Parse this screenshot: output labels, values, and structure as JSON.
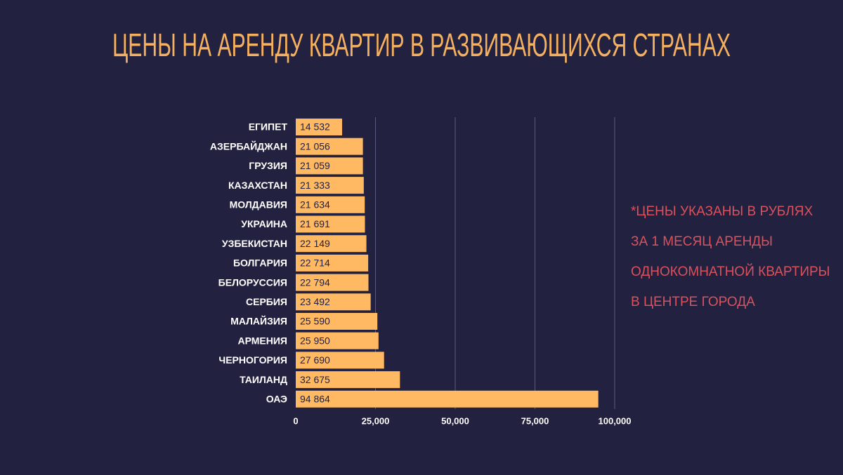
{
  "chart_data": {
    "type": "bar",
    "orientation": "horizontal",
    "title": "ЦЕНЫ НА АРЕНДУ КВАРТИР В РАЗВИВАЮЩИХСЯ СТРАНАХ",
    "categories": [
      "ЕГИПЕТ",
      "АЗЕРБАЙДЖАН",
      "ГРУЗИЯ",
      "КАЗАХСТАН",
      "МОЛДАВИЯ",
      "УКРАИНА",
      "УЗБЕКИСТАН",
      "БОЛГАРИЯ",
      "БЕЛОРУССИЯ",
      "СЕРБИЯ",
      "МАЛАЙЗИЯ",
      "АРМЕНИЯ",
      "ЧЕРНОГОРИЯ",
      "ТАИЛАНД",
      "ОАЭ"
    ],
    "values": [
      14532,
      21056,
      21059,
      21333,
      21634,
      21691,
      22149,
      22714,
      22794,
      23492,
      25590,
      25950,
      27690,
      32675,
      94864
    ],
    "value_labels": [
      "14 532",
      "21 056",
      "21 059",
      "21 333",
      "21 634",
      "21 691",
      "22 149",
      "22 714",
      "22 794",
      "23 492",
      "25 590",
      "25 950",
      "27 690",
      "32 675",
      "94 864"
    ],
    "color": "#ffb963",
    "xlim": [
      0,
      100000
    ],
    "xticks": [
      0,
      {
        "value": 25000,
        "label": "25,000"
      },
      {
        "value": 50000,
        "label": "50,000"
      },
      {
        "value": 75000,
        "label": "75,000"
      },
      {
        "value": 100000,
        "label": "100,000"
      }
    ],
    "grid": true,
    "annotation": [
      "*ЦЕНЫ УКАЗАНЫ В РУБЛЯХ",
      "ЗА 1 МЕСЯЦ АРЕНДЫ",
      "ОДНОКОМНАТНОЙ КВАРТИРЫ",
      "В ЦЕНТРЕ ГОРОДА"
    ]
  }
}
